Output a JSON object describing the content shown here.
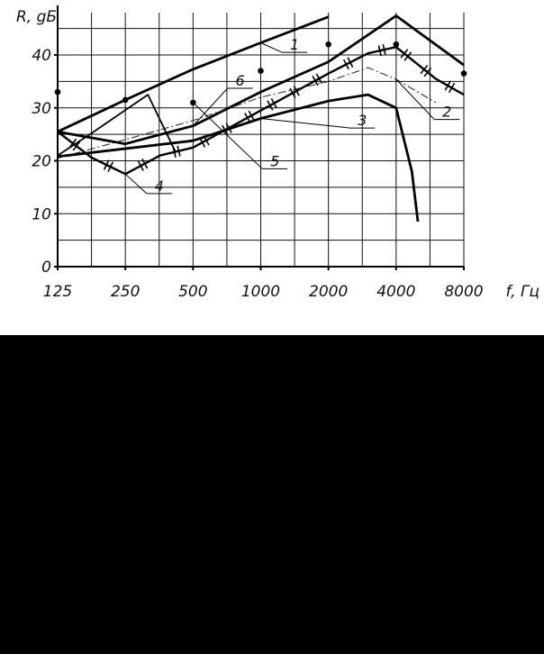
{
  "chart_data": {
    "type": "line",
    "title": "",
    "ylabel": "R, gБ",
    "xlabel": "f, Гц",
    "x_scale": "log",
    "x_ticks": [
      125,
      250,
      500,
      1000,
      2000,
      4000,
      8000
    ],
    "x_tick_labels": [
      "125",
      "250",
      "500",
      "1000",
      "2000",
      "4000",
      "8000"
    ],
    "xlim": [
      125,
      8000
    ],
    "y_ticks": [
      0,
      10,
      20,
      30,
      40
    ],
    "y_tick_labels": [
      "0",
      "10",
      "20",
      "30",
      "40"
    ],
    "ylim": [
      0,
      48
    ],
    "grid": true,
    "series": [
      {
        "name": "1",
        "style": "thick",
        "points": [
          [
            125,
            25.5
          ],
          [
            250,
            31.5
          ],
          [
            500,
            37.3
          ],
          [
            1000,
            42.3
          ],
          [
            2000,
            47.2
          ]
        ]
      },
      {
        "name": "2",
        "style": "thick",
        "points": [
          [
            125,
            25.5
          ],
          [
            250,
            23.2
          ],
          [
            500,
            26.6
          ],
          [
            1000,
            33
          ],
          [
            2000,
            38.7
          ],
          [
            4000,
            47.4
          ],
          [
            8000,
            38.1
          ]
        ]
      },
      {
        "name": "3",
        "style": "thick",
        "points": [
          [
            125,
            20.8
          ],
          [
            500,
            23.8
          ],
          [
            1000,
            28
          ],
          [
            2000,
            31.3
          ],
          [
            3000,
            32.5
          ],
          [
            4000,
            30
          ],
          [
            4700,
            18
          ],
          [
            5000,
            8.5
          ]
        ]
      },
      {
        "name": "4",
        "style": "thick-slashed",
        "points": [
          [
            125,
            25.5
          ],
          [
            177,
            20.6
          ],
          [
            250,
            17.5
          ],
          [
            357,
            21
          ],
          [
            500,
            22.5
          ],
          [
            1000,
            29.5
          ],
          [
            2000,
            36.5
          ],
          [
            3000,
            40.3
          ],
          [
            4000,
            41.5
          ],
          [
            6000,
            35.5
          ],
          [
            8000,
            32.5
          ]
        ]
      },
      {
        "name": "5",
        "style": "thin",
        "points": [
          [
            125,
            20.5
          ],
          [
            250,
            24
          ],
          [
            500,
            27.6
          ],
          [
            1000,
            32
          ],
          [
            2000,
            35
          ],
          [
            3000,
            37.6
          ],
          [
            4000,
            35.4
          ],
          [
            6000,
            31
          ]
        ]
      },
      {
        "name": "6",
        "style": "medium",
        "points": [
          [
            125,
            21
          ],
          [
            177,
            25.2
          ],
          [
            315,
            32.5
          ],
          [
            420,
            21.5
          ]
        ]
      },
      {
        "name": "",
        "style": "dots",
        "points": [
          [
            125,
            33
          ],
          [
            250,
            31.5
          ],
          [
            500,
            31
          ],
          [
            1000,
            37
          ],
          [
            2000,
            42
          ],
          [
            4000,
            42
          ],
          [
            8000,
            36.5
          ]
        ]
      }
    ],
    "labels": [
      {
        "text": "1",
        "x": 1414,
        "y": 40.5,
        "target": [
          1000,
          42.3
        ]
      },
      {
        "text": "2",
        "x": 6730,
        "y": 27.8,
        "target": [
          4000,
          35.4
        ]
      },
      {
        "text": "3",
        "x": 2828,
        "y": 26.2,
        "target": [
          1000,
          28
        ]
      },
      {
        "text": "4",
        "x": 354,
        "y": 13.8,
        "target": [
          250,
          17.5
        ]
      },
      {
        "text": "5",
        "x": 1156,
        "y": 18.5,
        "target": [
          500,
          31
        ]
      },
      {
        "text": "6",
        "x": 810,
        "y": 33.7,
        "target": [
          500,
          26.6
        ]
      }
    ]
  }
}
